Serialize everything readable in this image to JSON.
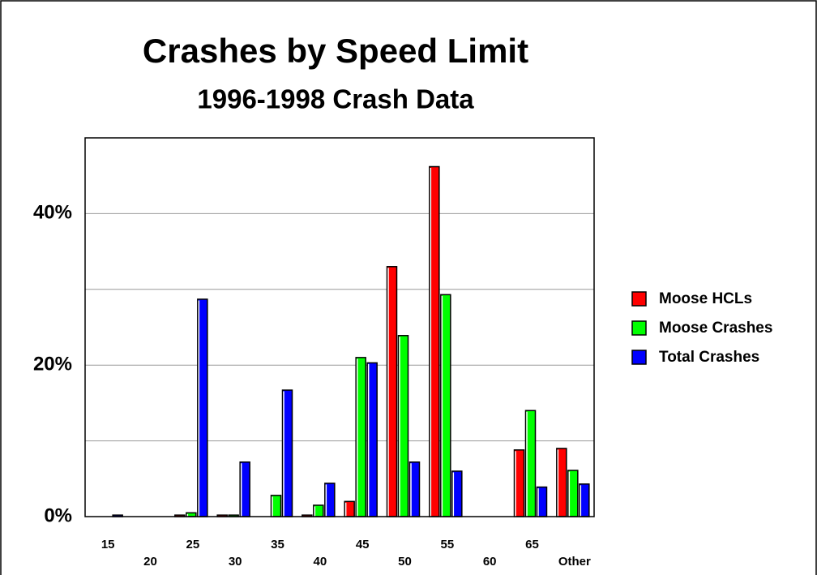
{
  "chart_data": {
    "type": "bar",
    "title": "Crashes by Speed Limit",
    "subtitle": "1996-1998 Crash Data",
    "categories": [
      "15",
      "20",
      "25",
      "30",
      "35",
      "40",
      "45",
      "50",
      "55",
      "60",
      "65",
      "Other"
    ],
    "series": [
      {
        "name": "Moose HCLs",
        "color": "#ff0000",
        "values": [
          0,
          0,
          0.2,
          0.2,
          0,
          0.2,
          2.0,
          33.0,
          46.2,
          0,
          8.8,
          9.0
        ]
      },
      {
        "name": "Moose Crashes",
        "color": "#00ff00",
        "values": [
          0,
          0,
          0.5,
          0.2,
          2.8,
          1.5,
          21.0,
          23.9,
          29.3,
          0,
          14.0,
          6.1
        ]
      },
      {
        "name": "Total Crashes",
        "color": "#0000ff",
        "values": [
          0.2,
          0,
          28.7,
          7.2,
          16.7,
          4.4,
          20.3,
          7.2,
          6.0,
          0,
          3.9,
          4.3
        ]
      }
    ],
    "ylim": [
      0,
      50
    ],
    "yticks": [
      {
        "value": 0,
        "label": "0%"
      },
      {
        "value": 20,
        "label": "20%"
      },
      {
        "value": 40,
        "label": "40%"
      }
    ],
    "minor_yticks": [
      10,
      30
    ],
    "grid": true,
    "legend": "right"
  }
}
